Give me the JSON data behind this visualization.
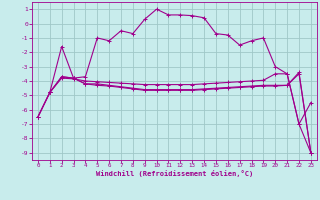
{
  "xlabel": "Windchill (Refroidissement éolien,°C)",
  "bg_color": "#c8ecec",
  "grid_color": "#a0c8c8",
  "line_color": "#a0008c",
  "x_ticks": [
    0,
    1,
    2,
    3,
    4,
    5,
    6,
    7,
    8,
    9,
    10,
    11,
    12,
    13,
    14,
    15,
    16,
    17,
    18,
    19,
    20,
    21,
    22,
    23
  ],
  "y_ticks": [
    1,
    0,
    -1,
    -2,
    -3,
    -4,
    -5,
    -6,
    -7,
    -8,
    -9
  ],
  "ylim": [
    -9.5,
    1.5
  ],
  "xlim": [
    -0.5,
    23.5
  ],
  "series": [
    {
      "x": [
        0,
        1,
        2,
        3,
        4,
        5,
        6,
        7,
        8,
        9,
        10,
        11,
        12,
        13,
        14,
        15,
        16,
        17,
        18,
        19,
        20,
        21,
        22,
        23
      ],
      "y": [
        -6.5,
        -4.8,
        -3.7,
        -3.8,
        -4.2,
        -4.2,
        -4.3,
        -4.4,
        -4.5,
        -4.6,
        -4.6,
        -4.6,
        -4.6,
        -4.6,
        -4.55,
        -4.5,
        -4.45,
        -4.4,
        -4.35,
        -4.3,
        -4.3,
        -4.3,
        -3.5,
        -9.0
      ],
      "marker": "+"
    },
    {
      "x": [
        0,
        1,
        2,
        3,
        4,
        5,
        6,
        7,
        8,
        9,
        10,
        11,
        12,
        13,
        14,
        15,
        16,
        17,
        18,
        19,
        20,
        21,
        22,
        23
      ],
      "y": [
        -6.5,
        -4.8,
        -3.7,
        -3.8,
        -4.2,
        -4.3,
        -4.35,
        -4.45,
        -4.55,
        -4.65,
        -4.65,
        -4.65,
        -4.65,
        -4.65,
        -4.6,
        -4.55,
        -4.5,
        -4.45,
        -4.4,
        -4.35,
        -4.35,
        -4.3,
        -3.4,
        -9.0
      ],
      "marker": "+"
    },
    {
      "x": [
        1,
        2,
        3,
        4,
        5,
        6,
        7,
        8,
        9,
        10,
        11,
        12,
        13,
        14,
        15,
        16,
        17,
        18,
        19,
        20,
        21,
        22,
        23
      ],
      "y": [
        -4.8,
        -1.6,
        -3.8,
        -3.7,
        -1.0,
        -1.2,
        -0.5,
        -0.7,
        0.3,
        1.0,
        0.6,
        0.6,
        0.55,
        0.4,
        -0.7,
        -0.8,
        -1.5,
        -1.2,
        -1.0,
        -3.0,
        -3.5,
        -7.0,
        -5.5
      ],
      "marker": "+"
    },
    {
      "x": [
        0,
        1,
        2,
        3,
        4,
        5,
        6,
        7,
        8,
        9,
        10,
        11,
        12,
        13,
        14,
        15,
        16,
        17,
        18,
        19,
        20,
        21,
        22,
        23
      ],
      "y": [
        -6.5,
        -4.8,
        -3.8,
        -3.85,
        -4.0,
        -4.05,
        -4.1,
        -4.15,
        -4.2,
        -4.25,
        -4.25,
        -4.25,
        -4.25,
        -4.25,
        -4.2,
        -4.15,
        -4.1,
        -4.05,
        -4.0,
        -3.95,
        -3.5,
        -3.5,
        -7.0,
        -9.0
      ],
      "marker": "+"
    }
  ]
}
